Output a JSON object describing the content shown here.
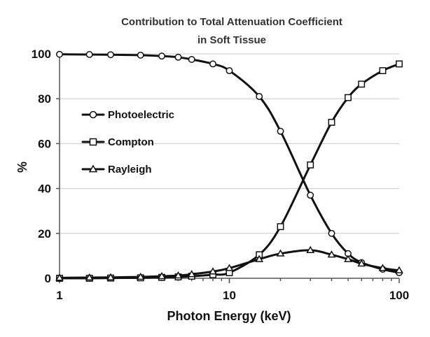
{
  "chart_data": {
    "type": "line",
    "title_lines": [
      "Contribution to Total Attenuation Coefficient",
      "in Soft Tissue"
    ],
    "xlabel": "Photon Energy (keV)",
    "ylabel": "%",
    "x_scale": "log",
    "xlim": [
      1,
      100
    ],
    "ylim": [
      0,
      100
    ],
    "x_ticks": [
      1,
      10,
      100
    ],
    "y_ticks": [
      0,
      20,
      40,
      60,
      80,
      100
    ],
    "grid": "horizontal",
    "legend_position": "left",
    "x": [
      1,
      1.5,
      2,
      3,
      4,
      5,
      6,
      8,
      10,
      15,
      20,
      30,
      40,
      50,
      60,
      80,
      100
    ],
    "series": [
      {
        "name": "Photoelectric",
        "marker": "circle",
        "values": [
          99.8,
          99.7,
          99.6,
          99.4,
          99.0,
          98.5,
          97.5,
          95.5,
          92.5,
          81,
          65.5,
          37,
          20,
          11,
          7,
          4,
          2.5
        ]
      },
      {
        "name": "Compton",
        "marker": "square",
        "values": [
          0,
          0,
          0.1,
          0.2,
          0.4,
          0.6,
          0.9,
          1.6,
          2.5,
          10.5,
          23,
          50.5,
          69.5,
          80.5,
          86.5,
          92.5,
          95.5
        ]
      },
      {
        "name": "Rayleigh",
        "marker": "triangle",
        "values": [
          0.2,
          0.3,
          0.4,
          0.6,
          0.9,
          1.2,
          1.8,
          3.0,
          4.5,
          8.5,
          11,
          12.5,
          10.5,
          8.5,
          6.5,
          4.5,
          3.5
        ]
      }
    ]
  }
}
